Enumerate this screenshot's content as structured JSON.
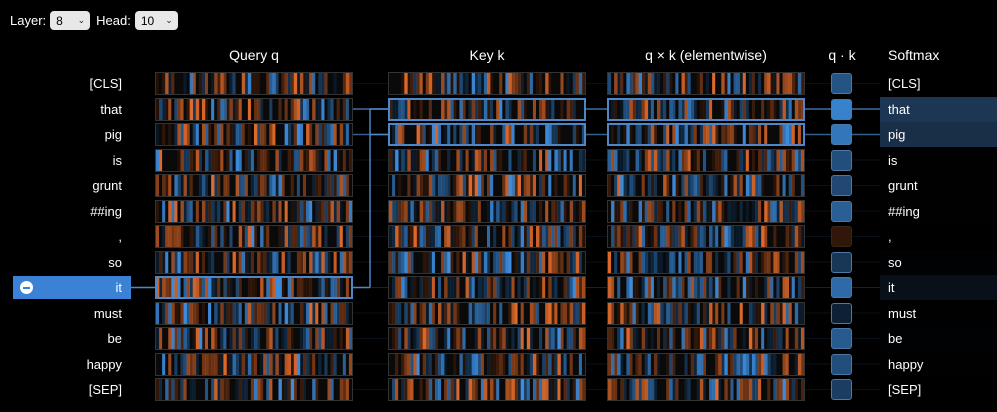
{
  "controls": {
    "layer_label": "Layer:",
    "layer_value": "8",
    "head_label": "Head:",
    "head_value": "10"
  },
  "headers": {
    "query": "Query q",
    "key": "Key k",
    "product": "q × k (elementwise)",
    "dot": "q · k",
    "softmax": "Softmax"
  },
  "tokens": [
    "[CLS]",
    "that",
    "pig",
    "is",
    "grunt",
    "##ing",
    ",",
    "so",
    "it",
    "must",
    "be",
    "happy",
    "[SEP]"
  ],
  "selected_index": 8,
  "softmax_weights": [
    0.0,
    0.82,
    0.7,
    0.02,
    0.02,
    0.02,
    0.0,
    0.03,
    0.25,
    0.02,
    0.04,
    0.02,
    0.0
  ],
  "dot_products": [
    0.55,
    0.95,
    0.85,
    0.5,
    0.45,
    0.65,
    -0.4,
    0.3,
    0.75,
    0.1,
    0.6,
    0.5,
    0.35
  ],
  "colors": {
    "positive": "#3e8ee0",
    "negative": "#e06a2b",
    "selected": "#3b82d6",
    "highlight_border": "#4f86c6"
  }
}
